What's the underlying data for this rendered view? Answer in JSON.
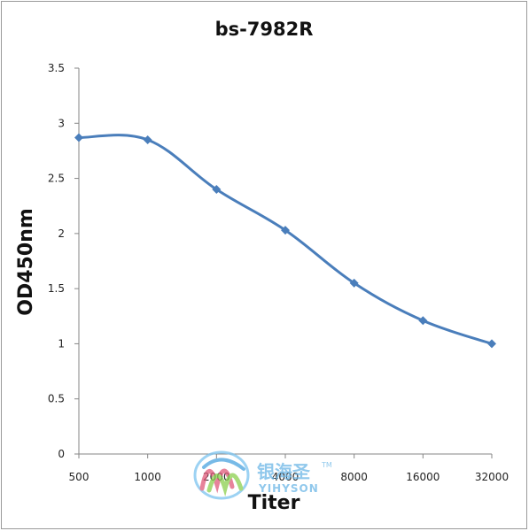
{
  "chart_data": {
    "type": "line",
    "title": "bs-7982R",
    "xlabel": "Titer",
    "ylabel": "OD450nm",
    "categories": [
      "500",
      "1000",
      "2000",
      "4000",
      "8000",
      "16000",
      "32000"
    ],
    "series": [
      {
        "values": [
          2.87,
          2.85,
          2.4,
          2.03,
          1.55,
          1.21,
          1.0
        ]
      }
    ],
    "ylim": [
      0,
      3.5
    ],
    "yticks": [
      "0",
      "0.5",
      "1",
      "1.5",
      "2",
      "2.5",
      "3",
      "3.5"
    ],
    "grid": false,
    "legend": "none",
    "colors": {
      "line": "#4a7ebb",
      "marker": "#4a7ebb",
      "axis": "#868686"
    }
  },
  "watermark": {
    "brand_cn": "银海圣",
    "brand_en": "YIHYSON",
    "trademark": "TM"
  }
}
